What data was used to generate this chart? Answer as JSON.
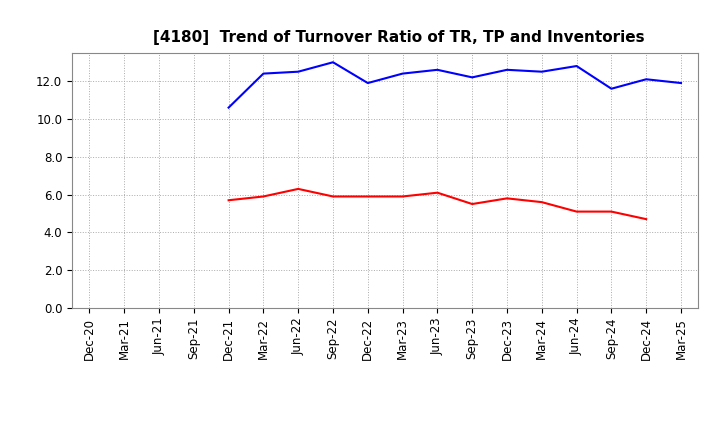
{
  "title": "[4180]  Trend of Turnover Ratio of TR, TP and Inventories",
  "x_labels": [
    "Dec-20",
    "Mar-21",
    "Jun-21",
    "Sep-21",
    "Dec-21",
    "Mar-22",
    "Jun-22",
    "Sep-22",
    "Dec-22",
    "Mar-23",
    "Jun-23",
    "Sep-23",
    "Dec-23",
    "Mar-24",
    "Jun-24",
    "Sep-24",
    "Dec-24",
    "Mar-25"
  ],
  "trade_receivables": [
    null,
    null,
    null,
    null,
    5.7,
    5.9,
    6.3,
    5.9,
    5.9,
    5.9,
    6.1,
    5.5,
    5.8,
    5.6,
    5.1,
    5.1,
    4.7,
    null
  ],
  "trade_payables": [
    null,
    null,
    null,
    null,
    10.6,
    12.4,
    12.5,
    13.0,
    11.9,
    12.4,
    12.6,
    12.2,
    12.6,
    12.5,
    12.8,
    11.6,
    12.1,
    11.9
  ],
  "inventories": [
    null,
    null,
    null,
    null,
    null,
    null,
    null,
    null,
    null,
    null,
    null,
    null,
    null,
    null,
    null,
    null,
    null,
    null
  ],
  "ylim": [
    0,
    13.5
  ],
  "yticks": [
    0.0,
    2.0,
    4.0,
    6.0,
    8.0,
    10.0,
    12.0
  ],
  "color_tr": "#ff0000",
  "color_tp": "#0000ff",
  "color_inv": "#008000",
  "background_color": "#ffffff",
  "grid_color": "#aaaaaa",
  "title_fontsize": 11,
  "tick_fontsize": 8.5,
  "legend_fontsize": 9
}
